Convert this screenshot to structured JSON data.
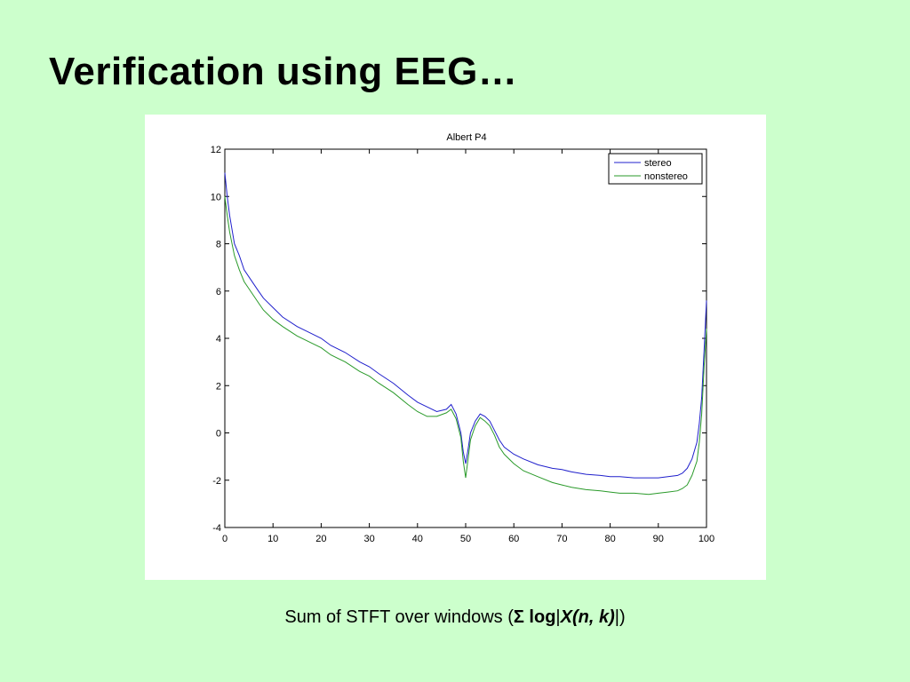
{
  "slide": {
    "title": "Verification using EEG…",
    "caption": {
      "prefix": "Sum of STFT over windows (",
      "sigma_log": "Σ log",
      "bar_left": "|",
      "x_expr": "X(n, k)",
      "bar_right": "|",
      "suffix": ")"
    }
  },
  "chart_data": {
    "type": "line",
    "title": "Albert P4",
    "xlabel": "",
    "ylabel": "",
    "xlim": [
      0,
      100
    ],
    "ylim": [
      -4,
      12
    ],
    "xticks": [
      0,
      10,
      20,
      30,
      40,
      50,
      60,
      70,
      80,
      90,
      100
    ],
    "yticks": [
      -4,
      -2,
      0,
      2,
      4,
      6,
      8,
      10,
      12
    ],
    "grid": false,
    "legend_position": "top-right",
    "series": [
      {
        "name": "stereo",
        "color": "#2020cc",
        "x": [
          0,
          0.5,
          1,
          2,
          3,
          4,
          5,
          6,
          7,
          8,
          10,
          12,
          15,
          18,
          20,
          22,
          25,
          28,
          30,
          32,
          35,
          38,
          40,
          42,
          44,
          46,
          47,
          48,
          49,
          49.5,
          50,
          50.5,
          51,
          52,
          53,
          54,
          55,
          56,
          57,
          58,
          60,
          62,
          65,
          68,
          70,
          72,
          75,
          78,
          80,
          82,
          85,
          88,
          90,
          92,
          94,
          95,
          96,
          97,
          98,
          98.5,
          99,
          99.5,
          100
        ],
        "y": [
          11.0,
          10.0,
          9.2,
          8.0,
          7.5,
          6.9,
          6.6,
          6.3,
          6.0,
          5.7,
          5.3,
          4.9,
          4.5,
          4.2,
          4.0,
          3.7,
          3.4,
          3.0,
          2.8,
          2.5,
          2.1,
          1.6,
          1.3,
          1.1,
          0.9,
          1.0,
          1.2,
          0.8,
          0.0,
          -0.8,
          -1.3,
          -0.7,
          0.0,
          0.5,
          0.8,
          0.7,
          0.5,
          0.1,
          -0.3,
          -0.6,
          -0.9,
          -1.1,
          -1.35,
          -1.5,
          -1.55,
          -1.65,
          -1.75,
          -1.8,
          -1.85,
          -1.85,
          -1.9,
          -1.9,
          -1.9,
          -1.85,
          -1.8,
          -1.7,
          -1.5,
          -1.1,
          -0.4,
          0.4,
          1.5,
          3.5,
          5.6
        ]
      },
      {
        "name": "nonstereo",
        "color": "#2a9a2a",
        "x": [
          0,
          0.5,
          1,
          2,
          3,
          4,
          5,
          6,
          7,
          8,
          10,
          12,
          15,
          18,
          20,
          22,
          25,
          28,
          30,
          32,
          35,
          38,
          40,
          42,
          44,
          46,
          47,
          48,
          49,
          49.5,
          50,
          50.5,
          51,
          52,
          53,
          54,
          55,
          56,
          57,
          58,
          60,
          62,
          65,
          68,
          70,
          72,
          75,
          78,
          80,
          82,
          85,
          88,
          90,
          92,
          94,
          95,
          96,
          97,
          98,
          98.5,
          99,
          99.5,
          100
        ],
        "y": [
          10.0,
          9.2,
          8.5,
          7.5,
          6.9,
          6.4,
          6.1,
          5.8,
          5.5,
          5.2,
          4.8,
          4.5,
          4.1,
          3.8,
          3.6,
          3.3,
          3.0,
          2.6,
          2.4,
          2.1,
          1.7,
          1.2,
          0.9,
          0.7,
          0.7,
          0.85,
          1.0,
          0.6,
          -0.2,
          -1.2,
          -1.9,
          -1.1,
          -0.3,
          0.3,
          0.65,
          0.5,
          0.3,
          -0.1,
          -0.6,
          -0.9,
          -1.3,
          -1.6,
          -1.85,
          -2.1,
          -2.2,
          -2.3,
          -2.4,
          -2.45,
          -2.5,
          -2.55,
          -2.55,
          -2.6,
          -2.55,
          -2.5,
          -2.45,
          -2.35,
          -2.2,
          -1.8,
          -1.2,
          -0.4,
          0.8,
          2.8,
          4.4
        ]
      }
    ]
  }
}
